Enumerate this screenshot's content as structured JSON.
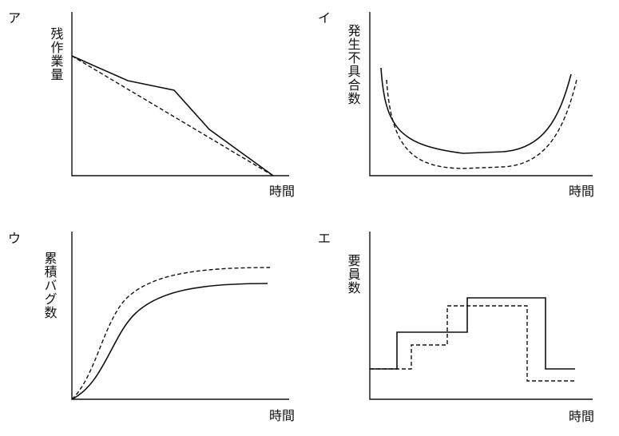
{
  "panels": [
    {
      "label": "ア",
      "y_label": "残作業量",
      "x_label": "時間"
    },
    {
      "label": "イ",
      "y_label": "発生不具合数",
      "x_label": "時間"
    },
    {
      "label": "ウ",
      "y_label": "累積バグ数",
      "x_label": "時間"
    },
    {
      "label": "エ",
      "y_label": "要員数",
      "x_label": "時間"
    }
  ]
}
